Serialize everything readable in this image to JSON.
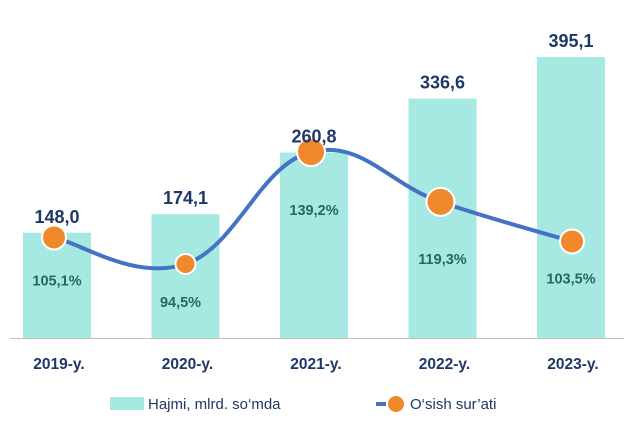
{
  "chart_data": {
    "type": "bar",
    "categories": [
      "2019-y.",
      "2020-y.",
      "2021-y.",
      "2022-y.",
      "2023-y."
    ],
    "series": [
      {
        "name": "Hajmi, mlrd. so‘mda",
        "type": "bar",
        "values": [
          148.0,
          174.1,
          260.8,
          336.6,
          395.1
        ],
        "labels": [
          "148,0",
          "174,1",
          "260,8",
          "336,6",
          "395,1"
        ]
      },
      {
        "name": "O‘sish sur’ati",
        "type": "line",
        "values": [
          105.1,
          94.5,
          139.2,
          119.3,
          103.5
        ],
        "labels": [
          "105,1%",
          "94,5%",
          "139,2%",
          "119,3%",
          "103,5%"
        ]
      }
    ],
    "bar_ylim": [
      0,
      405
    ],
    "line_ylim": [
      60,
      150
    ],
    "grid": false,
    "legend_position": "bottom"
  },
  "colors": {
    "bar": "#a6e9e3",
    "line": "#4472c4",
    "marker": "#f0882c",
    "marker_edge": "#ffffff",
    "bar_label": "#1f3864",
    "growth_label": "#1f6b60",
    "axis": "#bfbfbf",
    "category_label": "#1f3864",
    "legend_text": "#1f3864"
  }
}
